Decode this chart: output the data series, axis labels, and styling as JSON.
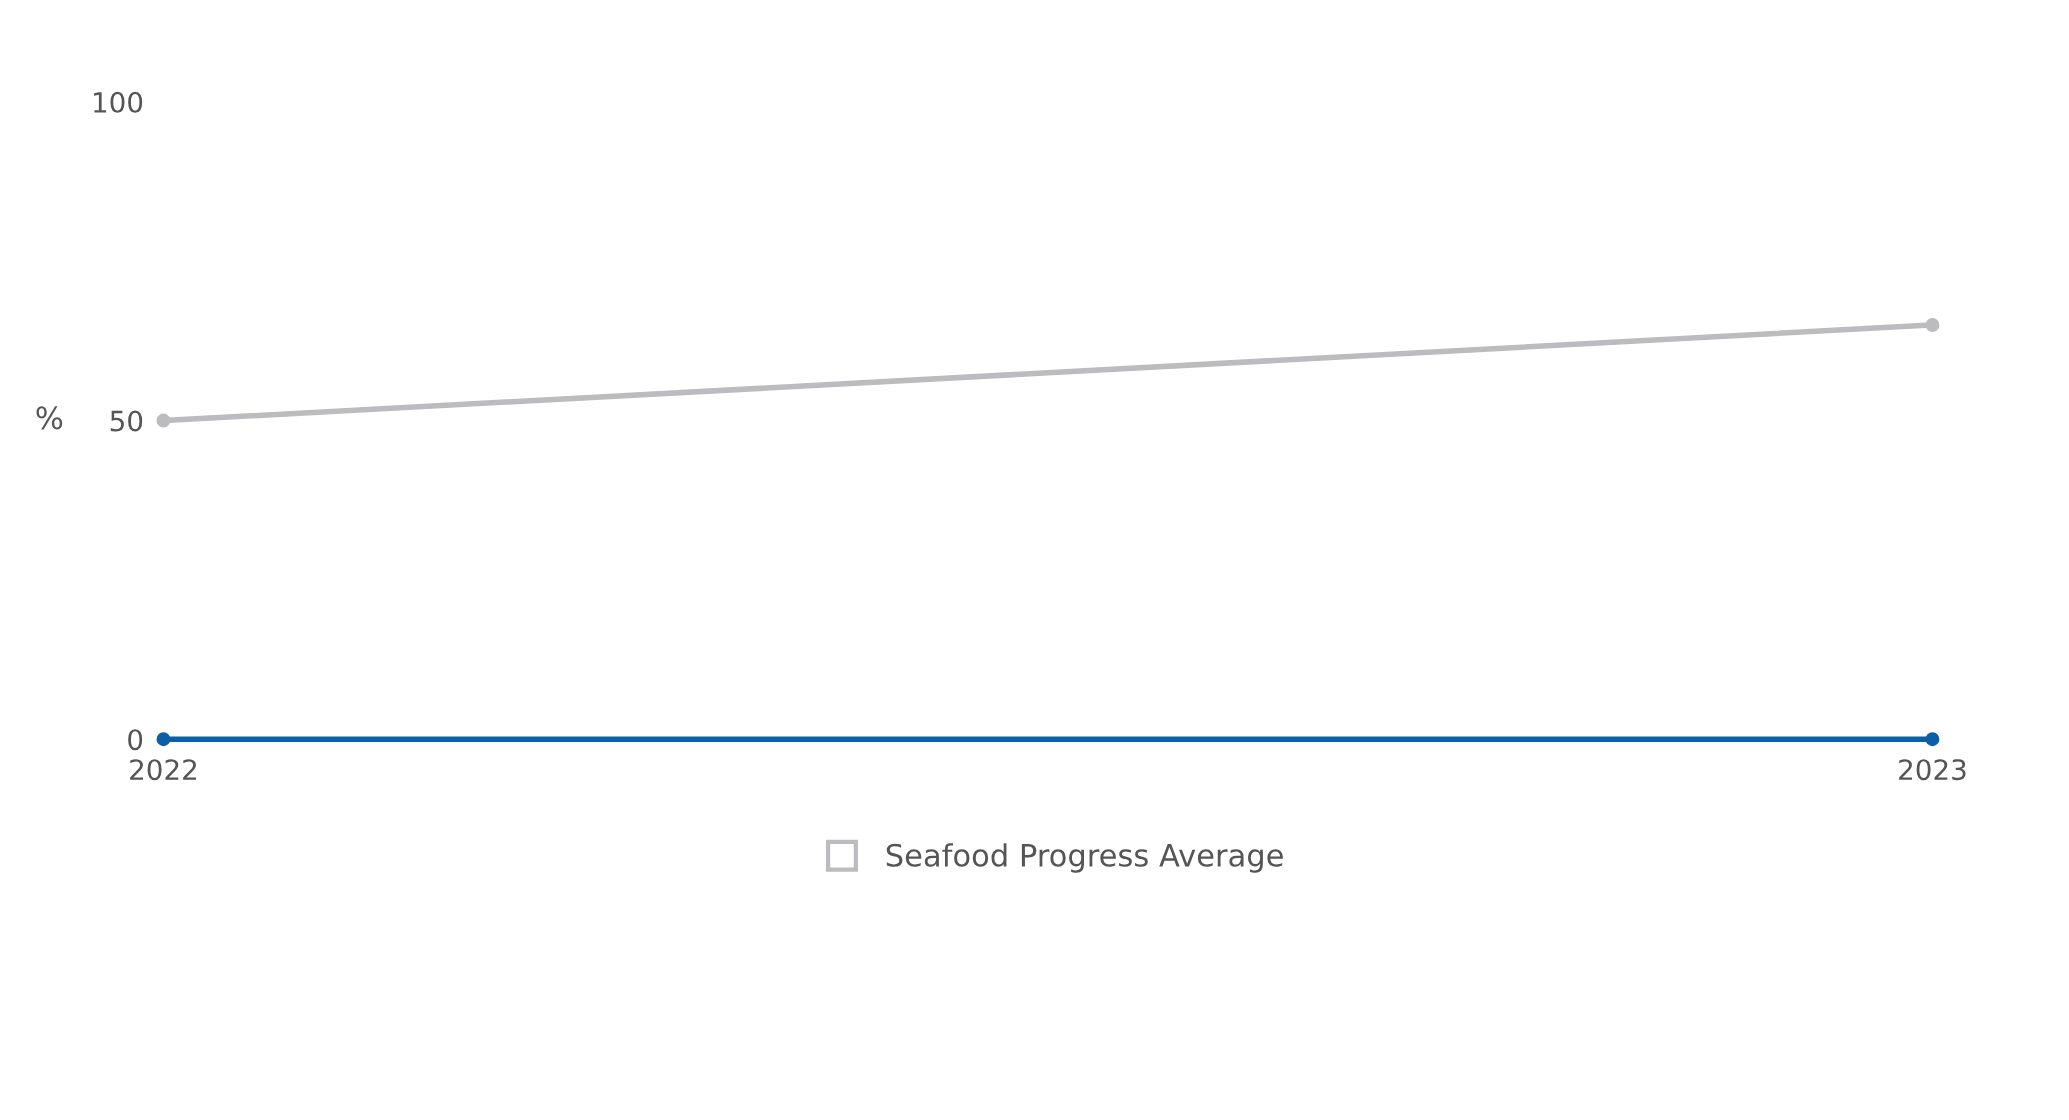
{
  "chart_data": {
    "type": "line",
    "ylabel": "%",
    "categories": [
      "2022",
      "2023"
    ],
    "series": [
      {
        "color": "#0a5fa6",
        "values": [
          0,
          0
        ]
      },
      {
        "name": "Seafood Progress Average",
        "color": "#bcbcc0",
        "values": [
          50,
          65
        ]
      }
    ],
    "ylim": [
      0,
      100
    ],
    "yticks": [
      0,
      50,
      100
    ],
    "marker": "circle",
    "legend": "bottom",
    "grid": false
  }
}
